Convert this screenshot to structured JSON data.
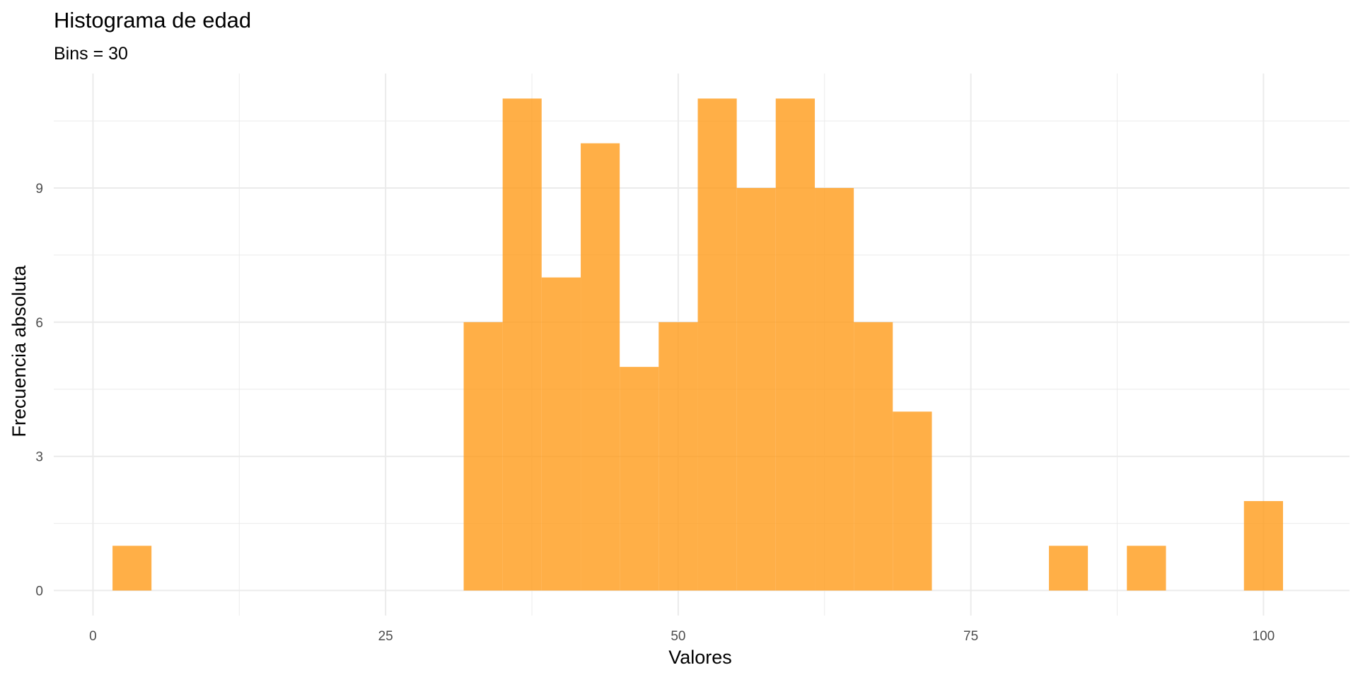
{
  "chart_data": {
    "type": "bar",
    "title": "Histograma de edad",
    "subtitle": "Bins = 30",
    "xlabel": "Valores",
    "ylabel": "Frecuencia absoluta",
    "xlim": [
      -3.35,
      107.35
    ],
    "ylim": [
      -0.56,
      11.56
    ],
    "x_ticks": [
      0,
      25,
      50,
      75,
      100
    ],
    "y_ticks": [
      0,
      3,
      6,
      9
    ],
    "grid": true,
    "bin_width": 3.333,
    "bar_color": "#FF9B19",
    "bins": [
      {
        "x_start": 1.67,
        "x_end": 5.0,
        "count": 1
      },
      {
        "x_start": 31.67,
        "x_end": 35.0,
        "count": 6
      },
      {
        "x_start": 35.0,
        "x_end": 38.33,
        "count": 11
      },
      {
        "x_start": 38.33,
        "x_end": 41.67,
        "count": 7
      },
      {
        "x_start": 41.67,
        "x_end": 45.0,
        "count": 10
      },
      {
        "x_start": 45.0,
        "x_end": 48.33,
        "count": 5
      },
      {
        "x_start": 48.33,
        "x_end": 51.67,
        "count": 6
      },
      {
        "x_start": 51.67,
        "x_end": 55.0,
        "count": 11
      },
      {
        "x_start": 55.0,
        "x_end": 58.33,
        "count": 9
      },
      {
        "x_start": 58.33,
        "x_end": 61.67,
        "count": 11
      },
      {
        "x_start": 61.67,
        "x_end": 65.0,
        "count": 9
      },
      {
        "x_start": 65.0,
        "x_end": 68.33,
        "count": 6
      },
      {
        "x_start": 68.33,
        "x_end": 71.67,
        "count": 4
      },
      {
        "x_start": 81.67,
        "x_end": 85.0,
        "count": 1
      },
      {
        "x_start": 88.33,
        "x_end": 91.67,
        "count": 1
      },
      {
        "x_start": 98.33,
        "x_end": 101.67,
        "count": 2
      }
    ]
  }
}
